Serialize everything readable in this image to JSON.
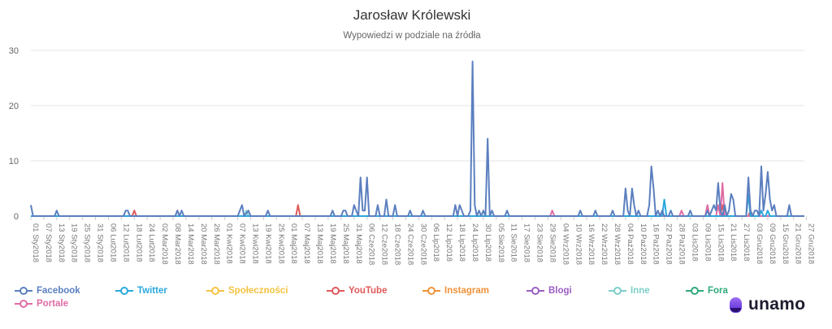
{
  "chart_data": {
    "type": "line",
    "title": "Jarosław Królewski",
    "subtitle": "Wypowiedzi w podziale na źródła",
    "ylim": [
      0,
      30
    ],
    "yticks": [
      0,
      10,
      20,
      30
    ],
    "grid": true,
    "legend_placement": "bottom-left",
    "xticks": [
      "01 Sty2018",
      "07 Sty2018",
      "13 Sty2018",
      "19 Sty2018",
      "25 Sty2018",
      "31 Sty2018",
      "06 Lut2018",
      "12 Lut2018",
      "18 Lut2018",
      "24 Lut2018",
      "02 Mar2018",
      "08 Mar2018",
      "14 Mar2018",
      "20 Mar2018",
      "26 Mar2018",
      "01 Kwi2018",
      "07 Kwi2018",
      "13 Kwi2018",
      "19 Kwi2018",
      "25 Kwi2018",
      "01 Maj2018",
      "07 Maj2018",
      "13 Maj2018",
      "19 Maj2018",
      "25 Maj2018",
      "31 Maj2018",
      "06 Cze2018",
      "12 Cze2018",
      "18 Cze2018",
      "24 Cze2018",
      "30 Cze2018",
      "06 Lip2018",
      "12 Lip2018",
      "18 Lip2018",
      "24 Lip2018",
      "30 Lip2018",
      "05 Sie2018",
      "11 Sie2018",
      "17 Sie2018",
      "23 Sie2018",
      "29 Sie2018",
      "04 Wrz2018",
      "10 Wrz2018",
      "16 Wrz2018",
      "22 Wrz2018",
      "28 Wrz2018",
      "04 Paź2018",
      "10 Paź2018",
      "16 Paź2018",
      "22 Paź2018",
      "28 Paź2018",
      "03 Lis2018",
      "09 Lis2018",
      "15 Lis2018",
      "21 Lis2018",
      "27 Lis2018",
      "03 Gru2018",
      "09 Gru2018",
      "15 Gru2018",
      "21 Gru2018",
      "27 Gru2018"
    ],
    "series": [
      {
        "name": "Facebook",
        "color": "#5b7fbf",
        "points": [
          [
            0,
            2
          ],
          [
            1,
            0
          ],
          [
            11,
            0
          ],
          [
            12,
            1
          ],
          [
            13,
            0
          ],
          [
            43,
            0
          ],
          [
            44,
            1
          ],
          [
            45,
            1
          ],
          [
            46,
            0
          ],
          [
            67,
            0
          ],
          [
            68,
            1
          ],
          [
            69,
            0
          ],
          [
            70,
            1
          ],
          [
            71,
            0
          ],
          [
            96,
            0
          ],
          [
            97,
            1
          ],
          [
            98,
            2
          ],
          [
            99,
            0
          ],
          [
            101,
            1
          ],
          [
            102,
            0
          ],
          [
            109,
            0
          ],
          [
            110,
            1
          ],
          [
            111,
            0
          ],
          [
            139,
            0
          ],
          [
            140,
            1
          ],
          [
            141,
            0
          ],
          [
            144,
            0
          ],
          [
            145,
            1
          ],
          [
            146,
            1
          ],
          [
            147,
            0
          ],
          [
            149,
            0
          ],
          [
            150,
            2
          ],
          [
            151,
            1
          ],
          [
            152,
            0
          ],
          [
            153,
            7
          ],
          [
            154,
            1
          ],
          [
            155,
            1
          ],
          [
            156,
            7
          ],
          [
            157,
            0
          ],
          [
            160,
            0
          ],
          [
            161,
            2
          ],
          [
            162,
            0
          ],
          [
            164,
            0
          ],
          [
            165,
            3
          ],
          [
            166,
            0
          ],
          [
            168,
            0
          ],
          [
            169,
            2
          ],
          [
            170,
            0
          ],
          [
            175,
            0
          ],
          [
            176,
            1
          ],
          [
            177,
            0
          ],
          [
            181,
            0
          ],
          [
            182,
            1
          ],
          [
            183,
            0
          ],
          [
            196,
            0
          ],
          [
            197,
            2
          ],
          [
            198,
            0
          ],
          [
            199,
            2
          ],
          [
            200,
            1
          ],
          [
            201,
            0
          ],
          [
            203,
            0
          ],
          [
            204,
            1
          ],
          [
            205,
            28
          ],
          [
            206,
            2
          ],
          [
            207,
            0
          ],
          [
            208,
            1
          ],
          [
            209,
            0
          ],
          [
            210,
            1
          ],
          [
            211,
            0
          ],
          [
            212,
            14
          ],
          [
            213,
            0
          ],
          [
            214,
            1
          ],
          [
            215,
            0
          ],
          [
            220,
            0
          ],
          [
            221,
            1
          ],
          [
            222,
            0
          ],
          [
            254,
            0
          ],
          [
            255,
            1
          ],
          [
            256,
            0
          ],
          [
            261,
            0
          ],
          [
            262,
            1
          ],
          [
            263,
            0
          ],
          [
            269,
            0
          ],
          [
            270,
            1
          ],
          [
            271,
            0
          ],
          [
            275,
            0
          ],
          [
            276,
            5
          ],
          [
            277,
            1
          ],
          [
            278,
            0
          ],
          [
            279,
            5
          ],
          [
            280,
            2
          ],
          [
            281,
            0
          ],
          [
            282,
            1
          ],
          [
            283,
            0
          ],
          [
            286,
            0
          ],
          [
            287,
            2
          ],
          [
            288,
            9
          ],
          [
            289,
            5
          ],
          [
            290,
            0
          ],
          [
            291,
            1
          ],
          [
            292,
            0
          ],
          [
            293,
            1
          ],
          [
            294,
            0
          ],
          [
            296,
            0
          ],
          [
            297,
            1
          ],
          [
            298,
            0
          ],
          [
            305,
            0
          ],
          [
            306,
            1
          ],
          [
            307,
            0
          ],
          [
            313,
            0
          ],
          [
            314,
            1
          ],
          [
            315,
            0
          ],
          [
            317,
            2
          ],
          [
            318,
            1
          ],
          [
            319,
            6
          ],
          [
            320,
            1
          ],
          [
            321,
            0
          ],
          [
            322,
            2
          ],
          [
            323,
            0
          ],
          [
            324,
            1
          ],
          [
            325,
            4
          ],
          [
            326,
            3
          ],
          [
            327,
            0
          ],
          [
            332,
            0
          ],
          [
            333,
            7
          ],
          [
            334,
            1
          ],
          [
            335,
            0
          ],
          [
            336,
            1
          ],
          [
            337,
            1
          ],
          [
            338,
            0
          ],
          [
            339,
            9
          ],
          [
            340,
            1
          ],
          [
            341,
            4
          ],
          [
            342,
            8
          ],
          [
            343,
            3
          ],
          [
            344,
            1
          ],
          [
            345,
            2
          ],
          [
            346,
            0
          ],
          [
            351,
            0
          ],
          [
            352,
            2
          ],
          [
            353,
            0
          ],
          [
            359,
            0
          ]
        ]
      },
      {
        "name": "Twitter",
        "color": "#2aa8dc",
        "points": [
          [
            0,
            0
          ],
          [
            293,
            0
          ],
          [
            294,
            3
          ],
          [
            295,
            0
          ],
          [
            332,
            0
          ],
          [
            333,
            4
          ],
          [
            334,
            0
          ],
          [
            338,
            0
          ],
          [
            339,
            1
          ],
          [
            340,
            0
          ],
          [
            341,
            0
          ],
          [
            342,
            1
          ],
          [
            343,
            0
          ],
          [
            359,
            0
          ]
        ]
      },
      {
        "name": "Społeczności",
        "color": "#f5c342",
        "points": [
          [
            0,
            0
          ],
          [
            359,
            0
          ]
        ]
      },
      {
        "name": "YouTube",
        "color": "#e05a5a",
        "points": [
          [
            0,
            0
          ],
          [
            47,
            0
          ],
          [
            48,
            1
          ],
          [
            49,
            0
          ],
          [
            123,
            0
          ],
          [
            124,
            2
          ],
          [
            125,
            0
          ],
          [
            320,
            0
          ],
          [
            321,
            2
          ],
          [
            322,
            0
          ],
          [
            333,
            0
          ],
          [
            334,
            1
          ],
          [
            335,
            0
          ],
          [
            359,
            0
          ]
        ]
      },
      {
        "name": "Instagram",
        "color": "#f0923a",
        "points": [
          [
            0,
            0
          ],
          [
            359,
            0
          ]
        ]
      },
      {
        "name": "Blogi",
        "color": "#9b5ec2",
        "points": [
          [
            0,
            0
          ],
          [
            359,
            0
          ]
        ]
      },
      {
        "name": "Inne",
        "color": "#7ccfc8",
        "points": [
          [
            0,
            0
          ],
          [
            99,
            0
          ],
          [
            100,
            1
          ],
          [
            101,
            0
          ],
          [
            359,
            0
          ]
        ]
      },
      {
        "name": "Fora",
        "color": "#2eaa7a",
        "points": [
          [
            0,
            0
          ],
          [
            359,
            0
          ]
        ]
      },
      {
        "name": "Portale",
        "color": "#e06ba4",
        "points": [
          [
            0,
            0
          ],
          [
            67,
            0
          ],
          [
            68,
            1
          ],
          [
            69,
            0
          ],
          [
            241,
            0
          ],
          [
            242,
            1
          ],
          [
            243,
            0
          ],
          [
            301,
            0
          ],
          [
            302,
            1
          ],
          [
            303,
            0
          ],
          [
            313,
            0
          ],
          [
            314,
            2
          ],
          [
            315,
            0
          ],
          [
            318,
            0
          ],
          [
            319,
            2
          ],
          [
            320,
            0
          ],
          [
            321,
            6
          ],
          [
            322,
            0
          ],
          [
            359,
            0
          ]
        ]
      }
    ]
  },
  "logo": {
    "text": "unamo"
  }
}
